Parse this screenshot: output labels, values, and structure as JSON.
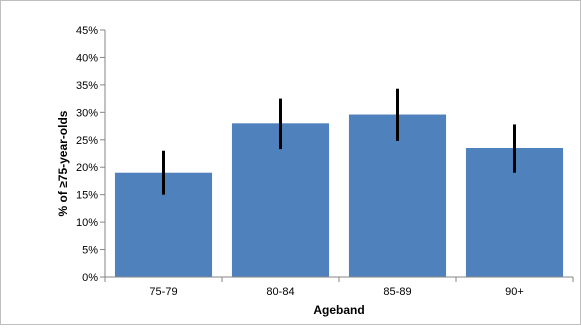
{
  "chart_data": {
    "type": "bar",
    "title": "",
    "xlabel": "Ageband",
    "ylabel": "% of ≥75-year-olds",
    "categories": [
      "75-79",
      "80-84",
      "85-89",
      "90+"
    ],
    "values": [
      19,
      28,
      29.6,
      23.5
    ],
    "error_low": [
      15,
      23.3,
      24.8,
      19
    ],
    "error_high": [
      23,
      32.5,
      34.3,
      27.8
    ],
    "ylim": [
      0,
      45
    ],
    "ytick_step": 5,
    "ytick_format": "percent",
    "grid": false,
    "legend": "none",
    "bar_color": "#4F81BD",
    "error_color": "#000000"
  }
}
